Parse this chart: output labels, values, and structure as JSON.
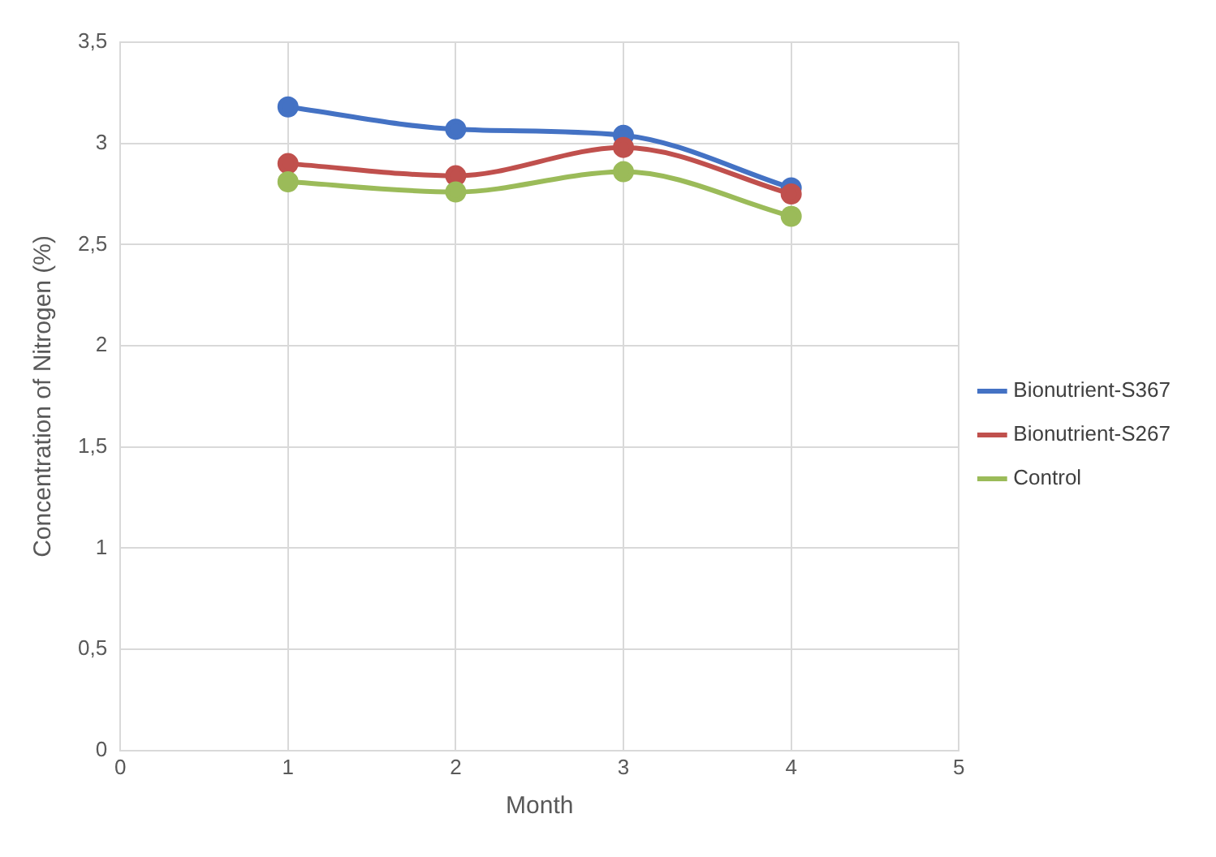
{
  "chart_data": {
    "type": "line",
    "xlabel": "Month",
    "ylabel": "Concentration of Nitrogen (%)",
    "x": [
      1,
      2,
      3,
      4
    ],
    "series": [
      {
        "name": "Bionutrient-S367",
        "color": "#4472c4",
        "values": [
          3.18,
          3.07,
          3.04,
          2.78
        ]
      },
      {
        "name": "Bionutrient-S267",
        "color": "#c0504d",
        "values": [
          2.9,
          2.84,
          2.98,
          2.75
        ]
      },
      {
        "name": "Control",
        "color": "#9bbb59",
        "values": [
          2.81,
          2.76,
          2.86,
          2.64
        ]
      }
    ],
    "xlim": [
      0,
      5
    ],
    "xticks": [
      0,
      1,
      2,
      3,
      4,
      5
    ],
    "ylim": [
      0,
      3.5
    ],
    "yticks": [
      0,
      {
        "value": 0.5,
        "label": "0,5"
      },
      1,
      {
        "value": 1.5,
        "label": "1,5"
      },
      2,
      {
        "value": 2.5,
        "label": "2,5"
      },
      3,
      {
        "value": 3.5,
        "label": "3,5"
      }
    ],
    "grid": true,
    "legend": "right",
    "marker": "circle",
    "line_style": "solid"
  }
}
